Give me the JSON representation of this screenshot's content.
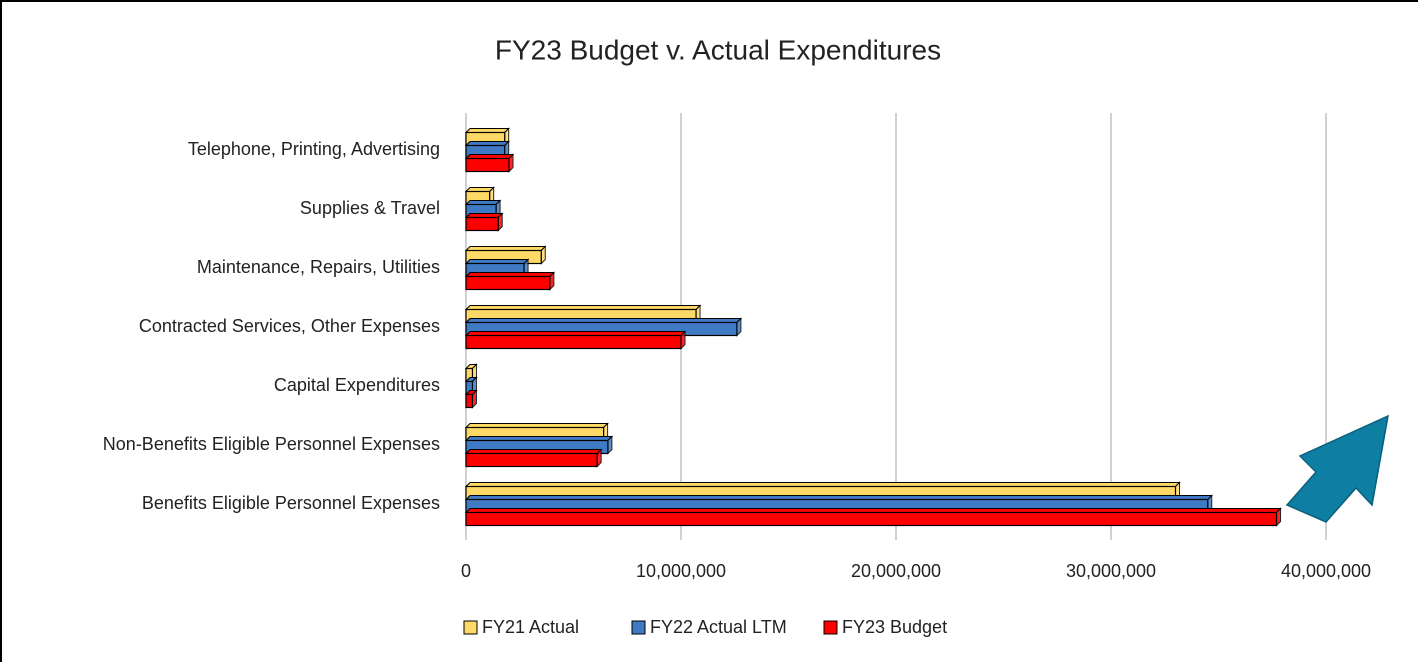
{
  "chart_data": {
    "type": "hbar",
    "title": "FY23 Budget v. Actual Expenditures",
    "categories": [
      "Telephone, Printing, Advertising",
      "Supplies & Travel",
      "Maintenance, Repairs, Utilities",
      "Contracted Services, Other Expenses",
      "Capital Expenditures",
      "Non-Benefits Eligible Personnel Expenses",
      "Benefits Eligible Personnel Expenses"
    ],
    "series": [
      {
        "name": "FY21 Actual",
        "color": "#ffd966",
        "values": [
          1800000,
          1100000,
          3500000,
          10700000,
          300000,
          6400000,
          33000000
        ]
      },
      {
        "name": "FY22 Actual LTM",
        "color": "#3f7bc4",
        "values": [
          1800000,
          1400000,
          2700000,
          12600000,
          300000,
          6600000,
          34500000
        ]
      },
      {
        "name": "FY23 Budget",
        "color": "#ff0000",
        "values": [
          2000000,
          1500000,
          3900000,
          10000000,
          300000,
          6100000,
          37700000
        ]
      }
    ],
    "xlim": [
      0,
      40000000
    ],
    "xticks": [
      0,
      {
        "value": 10000000,
        "label": "10,000,000"
      },
      {
        "value": 20000000,
        "label": "20,000,000"
      },
      {
        "value": 30000000,
        "label": "30,000,000"
      },
      {
        "value": 40000000,
        "label": "40,000,000"
      }
    ],
    "grid": true,
    "legend": "bottom"
  }
}
